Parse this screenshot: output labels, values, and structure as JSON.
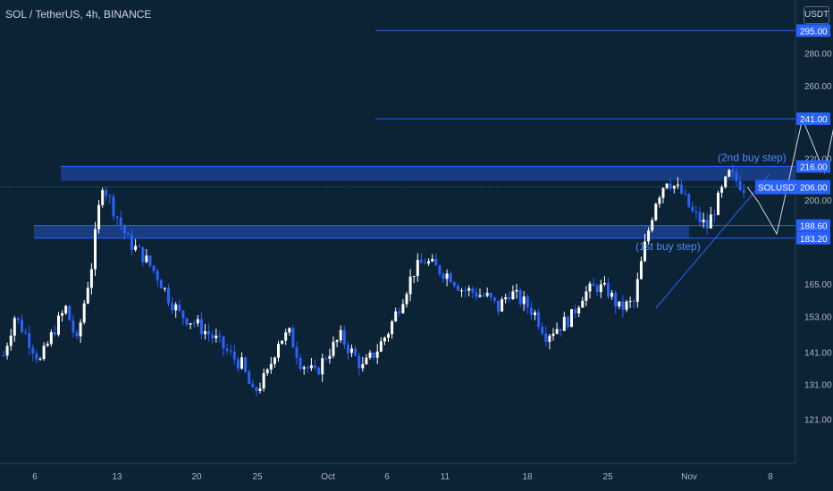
{
  "header": {
    "symbol_title": "SOL / TetherUS, 4h, BINANCE",
    "unit": "USDT"
  },
  "chart_data": {
    "type": "candlestick",
    "symbol": "SOLUSDT",
    "last_price": 206.0,
    "y_axis": {
      "scale": "log",
      "range": [
        112,
        305
      ],
      "tick_labels": [
        "121.00",
        "131.00",
        "141.00",
        "153.00",
        "165.00",
        "200.00",
        "220.00",
        "260.00",
        "280.00"
      ],
      "tick_values": [
        121,
        131,
        141,
        153,
        165,
        200,
        220,
        260,
        280
      ]
    },
    "x_axis": {
      "tick_labels": [
        "6",
        "13",
        "20",
        "25",
        "Oct",
        "6",
        "11",
        "18",
        "25",
        "Nov",
        "8"
      ]
    },
    "price_tags": [
      {
        "label": "295.00",
        "value": 295
      },
      {
        "label": "241.00",
        "value": 241
      },
      {
        "label": "216.00",
        "value": 216
      },
      {
        "label": "188.60",
        "value": 188.6
      },
      {
        "label": "183.20",
        "value": 183.2
      }
    ],
    "resistance_zone": [
      209,
      216
    ],
    "support_zone": [
      183.2,
      188.6
    ],
    "annotations": [
      "(2nd buy step)",
      "(1st buy step)"
    ],
    "colors": {
      "up": "#ffffff",
      "down": "#2962ff",
      "line": "#2962ff",
      "zone": "#1b3f8f",
      "background": "#0c2235",
      "projection": "#d1d4dc"
    },
    "price_path": [
      [
        0,
        140
      ],
      [
        3,
        153
      ],
      [
        6,
        147
      ],
      [
        10,
        138
      ],
      [
        14,
        149
      ],
      [
        17,
        156
      ],
      [
        20,
        144
      ],
      [
        24,
        172
      ],
      [
        27,
        208
      ],
      [
        30,
        196
      ],
      [
        34,
        182
      ],
      [
        38,
        176
      ],
      [
        42,
        168
      ],
      [
        45,
        160
      ],
      [
        48,
        154
      ],
      [
        52,
        151
      ],
      [
        55,
        148
      ],
      [
        58,
        145
      ],
      [
        62,
        140
      ],
      [
        65,
        137
      ],
      [
        68,
        128
      ],
      [
        72,
        134
      ],
      [
        75,
        145
      ],
      [
        78,
        147
      ],
      [
        81,
        138
      ],
      [
        85,
        134
      ],
      [
        88,
        140
      ],
      [
        92,
        146
      ],
      [
        95,
        141
      ],
      [
        98,
        136
      ],
      [
        102,
        142
      ],
      [
        105,
        148
      ],
      [
        108,
        157
      ],
      [
        112,
        170
      ],
      [
        115,
        174
      ],
      [
        118,
        171
      ],
      [
        122,
        168
      ],
      [
        125,
        163
      ],
      [
        128,
        162
      ],
      [
        132,
        160
      ],
      [
        135,
        156
      ],
      [
        138,
        162
      ],
      [
        142,
        158
      ],
      [
        145,
        154
      ],
      [
        148,
        147
      ],
      [
        152,
        150
      ],
      [
        155,
        153
      ],
      [
        158,
        161
      ],
      [
        162,
        164
      ],
      [
        165,
        162
      ],
      [
        168,
        156
      ],
      [
        172,
        158
      ],
      [
        175,
        180
      ],
      [
        178,
        200
      ],
      [
        181,
        210
      ],
      [
        185,
        203
      ],
      [
        188,
        194
      ],
      [
        192,
        188
      ],
      [
        195,
        200
      ],
      [
        198,
        212
      ],
      [
        202,
        206
      ]
    ],
    "projection_path": [
      [
        203,
        206
      ],
      [
        206,
        199
      ],
      [
        211,
        185
      ],
      [
        218,
        241
      ],
      [
        224,
        213
      ],
      [
        232,
        295
      ]
    ],
    "trendline": [
      [
        178,
        156
      ],
      [
        206,
        212
      ]
    ],
    "tags_labels": {
      "last": "SOLUSDT",
      "last_value": "206.00"
    }
  }
}
